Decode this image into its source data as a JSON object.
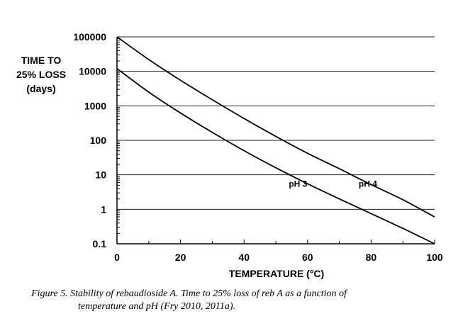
{
  "chart_data": {
    "type": "line",
    "y_scale": "log",
    "ylabel_lines": [
      "TIME  TO",
      "25% LOSS",
      "(days)"
    ],
    "xlabel": "TEMPERATURE  (°C)",
    "xlim": [
      0,
      100
    ],
    "ylim": [
      0.1,
      100000
    ],
    "x_ticks": [
      0,
      20,
      40,
      60,
      80,
      100
    ],
    "x_tick_labels": [
      "0",
      "20",
      "40",
      "60",
      "80",
      "100"
    ],
    "y_ticks": [
      0.1,
      1,
      10,
      100,
      1000,
      10000,
      100000
    ],
    "y_tick_labels": [
      "0.1",
      "1",
      "10",
      "100",
      "1000",
      "10000",
      "100000"
    ],
    "grid": "horizontal",
    "series": [
      {
        "name": "pH 4",
        "label": "pH 4",
        "label_at": [
          79,
          4.5
        ],
        "x": [
          0,
          10,
          20,
          30,
          40,
          50,
          60,
          70,
          80,
          90,
          100
        ],
        "y": [
          100000,
          22000,
          5500,
          1500,
          430,
          130,
          42,
          15,
          5.2,
          1.9,
          0.6
        ]
      },
      {
        "name": "pH 3",
        "label": "pH 3",
        "label_at": [
          57,
          4.5
        ],
        "x": [
          0,
          10,
          20,
          30,
          40,
          50,
          60,
          70,
          80,
          90,
          100
        ],
        "y": [
          12000,
          2500,
          620,
          170,
          50,
          16,
          5.5,
          2,
          0.75,
          0.28,
          0.1
        ]
      }
    ]
  },
  "caption": {
    "line1": "Figure 5. Stability of rebaudioside A. Time to 25% loss of reb A as a function of",
    "line2": "temperature and pH (Fry 2010, 2011a)."
  }
}
